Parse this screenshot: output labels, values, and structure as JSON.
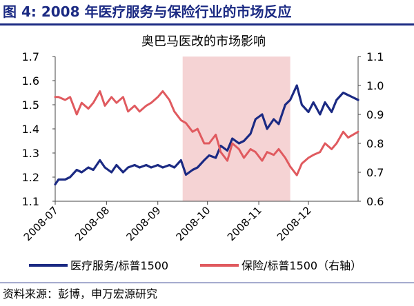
{
  "figure": {
    "title": "图 4: 2008 年医疗服务与保险行业的市场反应",
    "source": "资料来源：彭博，申万宏源研究"
  },
  "chart_data": {
    "type": "line",
    "title": "奥巴马医改的市场影响",
    "x_ticks": [
      "2008-07",
      "2008-08",
      "2008-09",
      "2008-10",
      "2008-11",
      "2008-12"
    ],
    "x_range": [
      "2008-07-01",
      "2008-12-31"
    ],
    "y_left": {
      "ylim": [
        1.1,
        1.7
      ],
      "ticks": [
        "1.1",
        "1.2",
        "1.3",
        "1.4",
        "1.5",
        "1.6",
        "1.7"
      ]
    },
    "y_right": {
      "ylim": [
        0.6,
        1.1
      ],
      "ticks": [
        "0.6",
        "0.7",
        "0.8",
        "0.9",
        "1.0",
        "1.1"
      ]
    },
    "highlight": {
      "from": "2008-09-16",
      "to": "2008-11-20",
      "color": "#f5d3d4"
    },
    "grid": false,
    "legend_position": "bottom",
    "series": [
      {
        "name": "医疗服务/标普1500",
        "axis": "left",
        "color": "#1b2a83",
        "points": [
          [
            "2008-07-01",
            1.17
          ],
          [
            "2008-07-03",
            1.19
          ],
          [
            "2008-07-07",
            1.19
          ],
          [
            "2008-07-10",
            1.2
          ],
          [
            "2008-07-14",
            1.23
          ],
          [
            "2008-07-17",
            1.22
          ],
          [
            "2008-07-21",
            1.24
          ],
          [
            "2008-07-24",
            1.23
          ],
          [
            "2008-07-28",
            1.27
          ],
          [
            "2008-07-31",
            1.24
          ],
          [
            "2008-08-04",
            1.22
          ],
          [
            "2008-08-07",
            1.25
          ],
          [
            "2008-08-11",
            1.22
          ],
          [
            "2008-08-14",
            1.24
          ],
          [
            "2008-08-18",
            1.25
          ],
          [
            "2008-08-21",
            1.24
          ],
          [
            "2008-08-25",
            1.25
          ],
          [
            "2008-08-28",
            1.24
          ],
          [
            "2008-09-01",
            1.25
          ],
          [
            "2008-09-04",
            1.24
          ],
          [
            "2008-09-08",
            1.25
          ],
          [
            "2008-09-11",
            1.24
          ],
          [
            "2008-09-15",
            1.27
          ],
          [
            "2008-09-18",
            1.21
          ],
          [
            "2008-09-22",
            1.23
          ],
          [
            "2008-09-25",
            1.24
          ],
          [
            "2008-09-29",
            1.27
          ],
          [
            "2008-10-02",
            1.29
          ],
          [
            "2008-10-06",
            1.28
          ],
          [
            "2008-10-09",
            1.33
          ],
          [
            "2008-10-13",
            1.31
          ],
          [
            "2008-10-16",
            1.36
          ],
          [
            "2008-10-20",
            1.34
          ],
          [
            "2008-10-23",
            1.35
          ],
          [
            "2008-10-27",
            1.38
          ],
          [
            "2008-10-30",
            1.44
          ],
          [
            "2008-11-03",
            1.46
          ],
          [
            "2008-11-06",
            1.4
          ],
          [
            "2008-11-10",
            1.44
          ],
          [
            "2008-11-13",
            1.42
          ],
          [
            "2008-11-17",
            1.5
          ],
          [
            "2008-11-20",
            1.52
          ],
          [
            "2008-11-24",
            1.58
          ],
          [
            "2008-11-27",
            1.5
          ],
          [
            "2008-12-01",
            1.47
          ],
          [
            "2008-12-04",
            1.51
          ],
          [
            "2008-12-08",
            1.46
          ],
          [
            "2008-12-11",
            1.51
          ],
          [
            "2008-12-15",
            1.47
          ],
          [
            "2008-12-18",
            1.52
          ],
          [
            "2008-12-22",
            1.55
          ],
          [
            "2008-12-25",
            1.54
          ],
          [
            "2008-12-31",
            1.52
          ]
        ]
      },
      {
        "name": "保险/标普1500（右轴）",
        "axis": "right",
        "color": "#e05a5f",
        "points": [
          [
            "2008-07-01",
            0.96
          ],
          [
            "2008-07-03",
            0.96
          ],
          [
            "2008-07-07",
            0.95
          ],
          [
            "2008-07-10",
            0.96
          ],
          [
            "2008-07-14",
            0.9
          ],
          [
            "2008-07-17",
            0.94
          ],
          [
            "2008-07-21",
            0.92
          ],
          [
            "2008-07-24",
            0.94
          ],
          [
            "2008-07-28",
            0.98
          ],
          [
            "2008-07-31",
            0.93
          ],
          [
            "2008-08-04",
            0.96
          ],
          [
            "2008-08-07",
            0.94
          ],
          [
            "2008-08-11",
            0.96
          ],
          [
            "2008-08-14",
            0.91
          ],
          [
            "2008-08-18",
            0.93
          ],
          [
            "2008-08-21",
            0.91
          ],
          [
            "2008-08-25",
            0.93
          ],
          [
            "2008-08-28",
            0.94
          ],
          [
            "2008-09-01",
            0.96
          ],
          [
            "2008-09-04",
            0.98
          ],
          [
            "2008-09-08",
            0.95
          ],
          [
            "2008-09-11",
            0.91
          ],
          [
            "2008-09-15",
            0.88
          ],
          [
            "2008-09-18",
            0.87
          ],
          [
            "2008-09-22",
            0.84
          ],
          [
            "2008-09-25",
            0.85
          ],
          [
            "2008-09-29",
            0.8
          ],
          [
            "2008-10-02",
            0.8
          ],
          [
            "2008-10-06",
            0.83
          ],
          [
            "2008-10-09",
            0.77
          ],
          [
            "2008-10-13",
            0.74
          ],
          [
            "2008-10-16",
            0.8
          ],
          [
            "2008-10-20",
            0.78
          ],
          [
            "2008-10-23",
            0.75
          ],
          [
            "2008-10-27",
            0.78
          ],
          [
            "2008-10-30",
            0.77
          ],
          [
            "2008-11-03",
            0.74
          ],
          [
            "2008-11-06",
            0.77
          ],
          [
            "2008-11-10",
            0.76
          ],
          [
            "2008-11-13",
            0.78
          ],
          [
            "2008-11-17",
            0.75
          ],
          [
            "2008-11-20",
            0.72
          ],
          [
            "2008-11-24",
            0.69
          ],
          [
            "2008-11-27",
            0.73
          ],
          [
            "2008-12-01",
            0.75
          ],
          [
            "2008-12-04",
            0.76
          ],
          [
            "2008-12-08",
            0.77
          ],
          [
            "2008-12-11",
            0.8
          ],
          [
            "2008-12-15",
            0.78
          ],
          [
            "2008-12-18",
            0.8
          ],
          [
            "2008-12-22",
            0.84
          ],
          [
            "2008-12-25",
            0.82
          ],
          [
            "2008-12-31",
            0.84
          ]
        ]
      }
    ]
  }
}
